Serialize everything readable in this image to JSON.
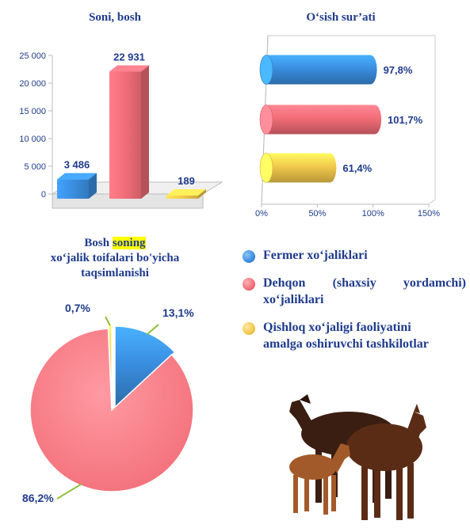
{
  "colors": {
    "farmer": "#3a8ee0",
    "dehqon": "#f26d78",
    "org": "#f2c94c",
    "title": "#1f3b8c"
  },
  "chart_data": [
    {
      "type": "bar",
      "title": "Soni, bosh",
      "categories": [
        "Fermer xo‘jaliklari",
        "Dehqon (shaxsiy yordamchi) xo‘jaliklari",
        "Qishloq xo‘jaligi faoliyatini amalga oshiruvchi tashkilotlar"
      ],
      "values": [
        3486,
        22931,
        189
      ],
      "value_labels": [
        "3 486",
        "22 931",
        "189"
      ],
      "ylim": [
        0,
        25000
      ],
      "yticks": [
        0,
        5000,
        10000,
        15000,
        20000,
        25000
      ],
      "ytick_labels": [
        "0",
        "5 000",
        "10 000",
        "15 000",
        "20 000",
        "25 000"
      ],
      "grid": false
    },
    {
      "type": "bar",
      "orientation": "horizontal",
      "title": "O‘sish sur’ati",
      "categories": [
        "Fermer xo‘jaliklari",
        "Dehqon (shaxsiy yordamchi) xo‘jaliklari",
        "Qishloq xo‘jaligi faoliyatini amalga oshiruvchi tashkilotlar"
      ],
      "values": [
        97.8,
        101.7,
        61.4
      ],
      "value_labels": [
        "97,8%",
        "101,7%",
        "61,4%"
      ],
      "xlim": [
        0,
        150
      ],
      "xticks": [
        0,
        50,
        100,
        150
      ],
      "xtick_labels": [
        "0%",
        "50%",
        "100%",
        "150%"
      ]
    },
    {
      "type": "pie",
      "title_parts": [
        "Bosh ",
        "soning",
        " xo‘jalik toifalari bo'yicha taqsimlanishi"
      ],
      "categories": [
        "Fermer xo‘jaliklari",
        "Dehqon (shaxsiy yordamchi) xo‘jaliklari",
        "Qishloq xo‘jaligi faoliyatini amalga oshiruvchi tashkilotlar"
      ],
      "values": [
        13.1,
        86.2,
        0.7
      ],
      "value_labels": [
        "13,1%",
        "86,2%",
        "0,7%"
      ],
      "legend": "right"
    }
  ],
  "legend": {
    "items": [
      {
        "label": "Fermer xo‘jaliklari",
        "color_key": "farmer"
      },
      {
        "label": "Dehqon (shaxsiy yordamchi) xo‘jaliklari",
        "color_key": "dehqon"
      },
      {
        "label": "Qishloq xo‘jaligi faoliyatini amalga oshiruvchi tashkilotlar",
        "color_key": "org"
      }
    ]
  },
  "illustration": "horses-image"
}
